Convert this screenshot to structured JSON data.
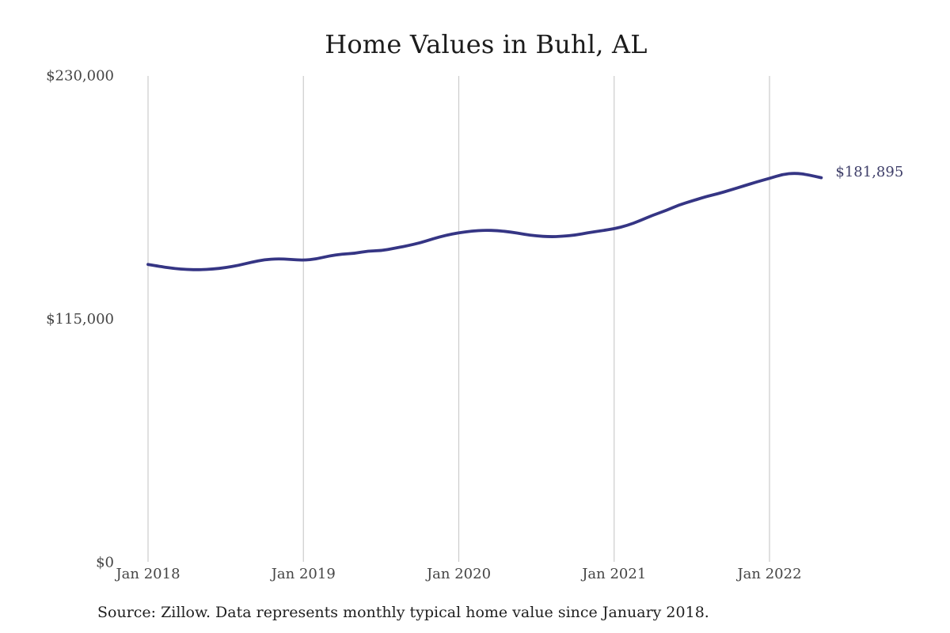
{
  "chart_data": {
    "type": "line",
    "title": "Home Values in Buhl, AL",
    "source_note": "Source: Zillow. Data represents monthly typical home value since January 2018.",
    "series_name": "Typical home value",
    "unit": "USD",
    "ylim": [
      0,
      230000
    ],
    "grid": "vertical-only",
    "legend": "none",
    "end_label": "$181,895",
    "latest_value": 181895,
    "y_ticks": [
      {
        "label": "$230,000",
        "value": 230000
      },
      {
        "label": "$115,000",
        "value": 115000
      },
      {
        "label": "$0",
        "value": 0
      }
    ],
    "x_ticks": [
      {
        "label": "Jan 2018",
        "month_index": 0
      },
      {
        "label": "Jan 2019",
        "month_index": 12
      },
      {
        "label": "Jan 2020",
        "month_index": 24
      },
      {
        "label": "Jan 2021",
        "month_index": 36
      },
      {
        "label": "Jan 2022",
        "month_index": 48
      }
    ],
    "months": [
      "2018-01",
      "2018-02",
      "2018-03",
      "2018-04",
      "2018-05",
      "2018-06",
      "2018-07",
      "2018-08",
      "2018-09",
      "2018-10",
      "2018-11",
      "2018-12",
      "2019-01",
      "2019-02",
      "2019-03",
      "2019-04",
      "2019-05",
      "2019-06",
      "2019-07",
      "2019-08",
      "2019-09",
      "2019-10",
      "2019-11",
      "2019-12",
      "2020-01",
      "2020-02",
      "2020-03",
      "2020-04",
      "2020-05",
      "2020-06",
      "2020-07",
      "2020-08",
      "2020-09",
      "2020-10",
      "2020-11",
      "2020-12",
      "2021-01",
      "2021-02",
      "2021-03",
      "2021-04",
      "2021-05",
      "2021-06",
      "2021-07",
      "2021-08",
      "2021-09",
      "2021-10",
      "2021-11",
      "2021-12",
      "2022-01",
      "2022-02",
      "2022-03",
      "2022-04",
      "2022-05"
    ],
    "values": [
      140900,
      139900,
      139000,
      138500,
      138400,
      138700,
      139400,
      140500,
      142000,
      143200,
      143600,
      143300,
      142900,
      143500,
      145000,
      145800,
      146200,
      147300,
      147400,
      148500,
      149700,
      151100,
      153000,
      154700,
      155900,
      156700,
      157100,
      156900,
      156300,
      155200,
      154400,
      154000,
      154200,
      154800,
      155900,
      156800,
      157800,
      159300,
      161600,
      164200,
      166400,
      169000,
      170900,
      172800,
      174300,
      176100,
      178000,
      179900,
      181600,
      183500,
      184100,
      183300,
      181895
    ],
    "colors": {
      "line": "#353584",
      "gridline": "#cccccc",
      "title_text": "#1c1c1c",
      "axis_text": "#454545",
      "end_label_text": "#40406a",
      "source_text": "#1f1f1f",
      "background": "#ffffff"
    }
  }
}
